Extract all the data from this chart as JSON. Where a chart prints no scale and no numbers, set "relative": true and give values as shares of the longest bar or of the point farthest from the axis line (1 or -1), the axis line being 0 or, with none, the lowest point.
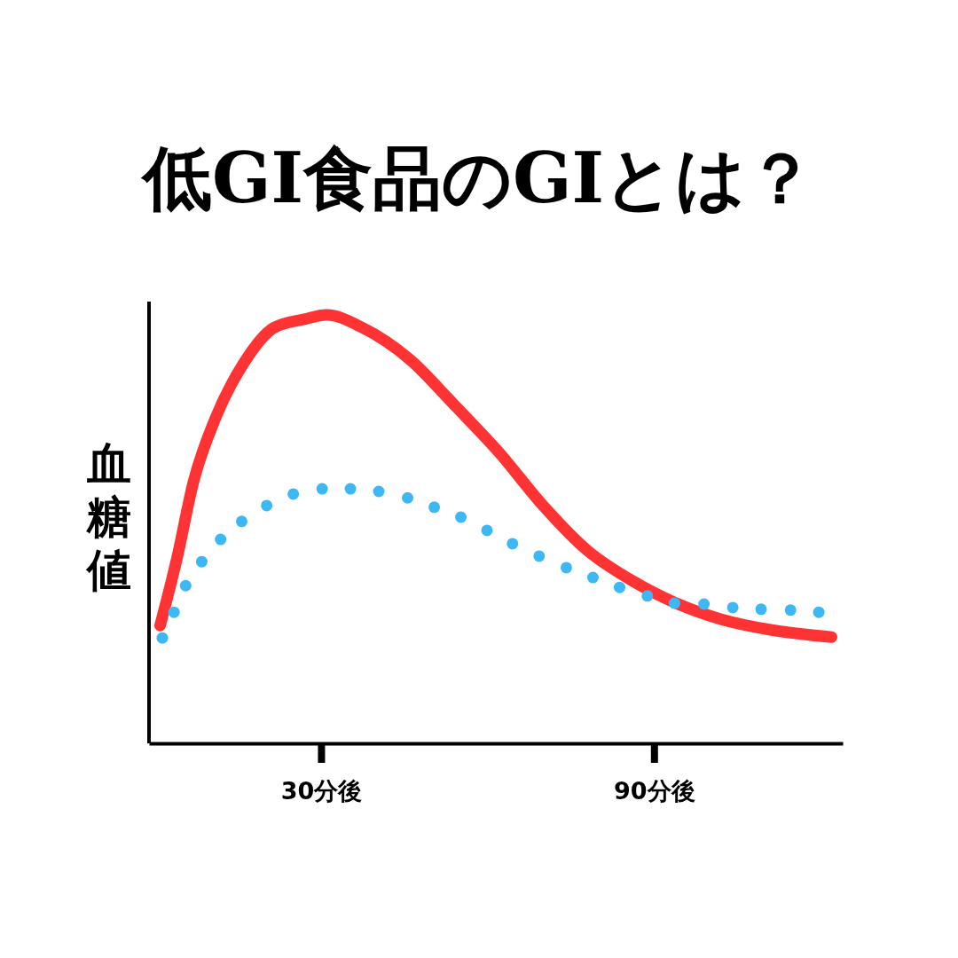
{
  "chart_data": {
    "type": "line",
    "title": "低GI食品のGIとは？",
    "ylabel": "血糖値",
    "relative": true,
    "tick_labels": "x",
    "xlim": [
      -1,
      124
    ],
    "xticks": [
      {
        "value": 30,
        "label": "30分後"
      },
      {
        "value": 90,
        "label": "90分後"
      }
    ],
    "series": [
      {
        "color": "#ff3333",
        "line_style": "solid",
        "marker": "none",
        "x": [
          1,
          4,
          7,
          11,
          16,
          21.5,
          27,
          31,
          37.5,
          46,
          54,
          62,
          70,
          78,
          86,
          94,
          102,
          111,
          122
        ],
        "values": [
          0.275,
          0.43,
          0.61,
          0.76,
          0.886,
          0.97,
          0.99,
          1.0,
          0.97,
          0.896,
          0.79,
          0.68,
          0.555,
          0.45,
          0.38,
          0.327,
          0.29,
          0.265,
          0.248
        ]
      },
      {
        "type": "scatter",
        "color": "#3db8f5",
        "marker": "circle",
        "x": [
          1.4,
          3.5,
          5.6,
          8.5,
          11.9,
          15.7,
          20.2,
          25.0,
          30.2,
          35.3,
          40.4,
          45.6,
          50.4,
          55.2,
          59.9,
          64.5,
          69.3,
          74.2,
          79.0,
          83.8,
          88.8,
          93.7,
          99.0,
          104.2,
          109.3,
          114.6,
          119.7
        ],
        "values": [
          0.246,
          0.306,
          0.368,
          0.424,
          0.476,
          0.518,
          0.555,
          0.582,
          0.594,
          0.594,
          0.588,
          0.573,
          0.551,
          0.528,
          0.497,
          0.466,
          0.437,
          0.41,
          0.387,
          0.364,
          0.344,
          0.327,
          0.325,
          0.317,
          0.313,
          0.311,
          0.306
        ]
      }
    ]
  }
}
